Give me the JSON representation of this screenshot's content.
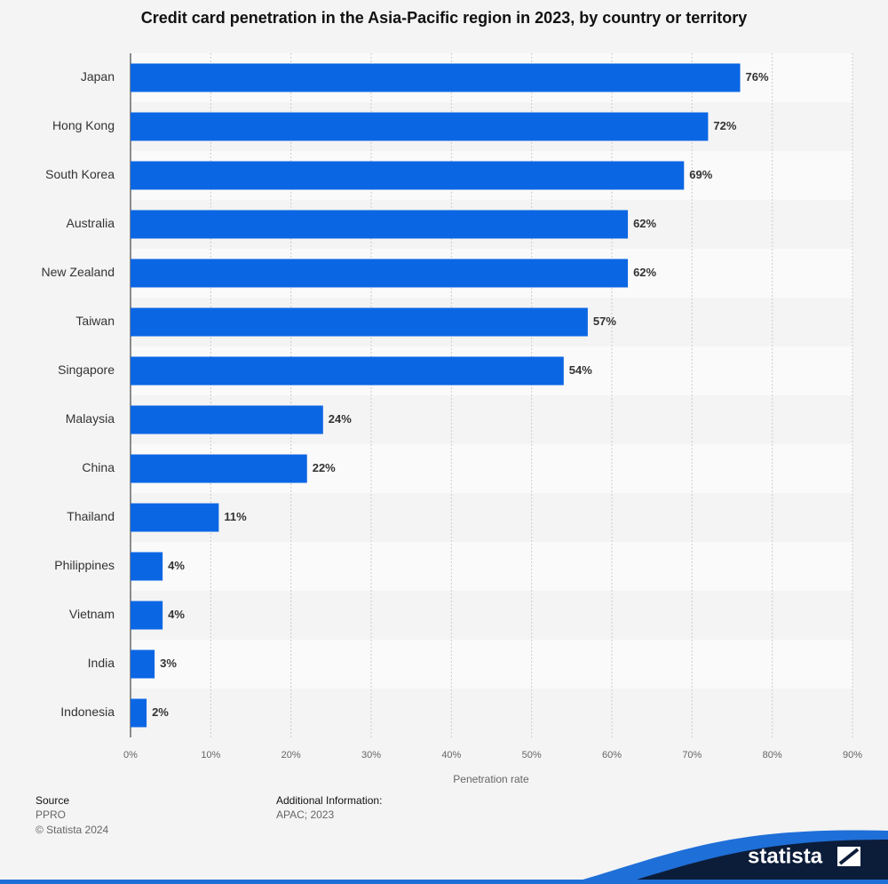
{
  "chart_data": {
    "type": "bar",
    "orientation": "horizontal",
    "title": "Credit card penetration in the Asia-Pacific region in 2023, by country or territory",
    "x_label": "Penetration rate",
    "categories": [
      "Japan",
      "Hong Kong",
      "South Korea",
      "Australia",
      "New Zealand",
      "Taiwan",
      "Singapore",
      "Malaysia",
      "China",
      "Thailand",
      "Philippines",
      "Vietnam",
      "India",
      "Indonesia"
    ],
    "values": [
      76,
      72,
      69,
      62,
      62,
      57,
      54,
      24,
      22,
      11,
      4,
      4,
      3,
      2
    ],
    "value_labels": [
      "76%",
      "72%",
      "69%",
      "62%",
      "62%",
      "57%",
      "54%",
      "24%",
      "22%",
      "11%",
      "4%",
      "4%",
      "3%",
      "2%"
    ],
    "color": "#0b66e4",
    "xlim": [
      0,
      90
    ],
    "xticks": [
      {
        "value": 0,
        "label": "0%"
      },
      {
        "value": 10,
        "label": "10%"
      },
      {
        "value": 20,
        "label": "20%"
      },
      {
        "value": 30,
        "label": "30%"
      },
      {
        "value": 40,
        "label": "40%"
      },
      {
        "value": 50,
        "label": "50%"
      },
      {
        "value": 60,
        "label": "60%"
      },
      {
        "value": 70,
        "label": "70%"
      },
      {
        "value": 80,
        "label": "80%"
      },
      {
        "value": 90,
        "label": "90%"
      }
    ],
    "grid": true
  },
  "footer": {
    "source_heading": "Source",
    "source": "PPRO",
    "copyright": "© Statista 2024",
    "info_heading": "Additional Information:",
    "info": "APAC; 2023",
    "logo": "statista"
  }
}
